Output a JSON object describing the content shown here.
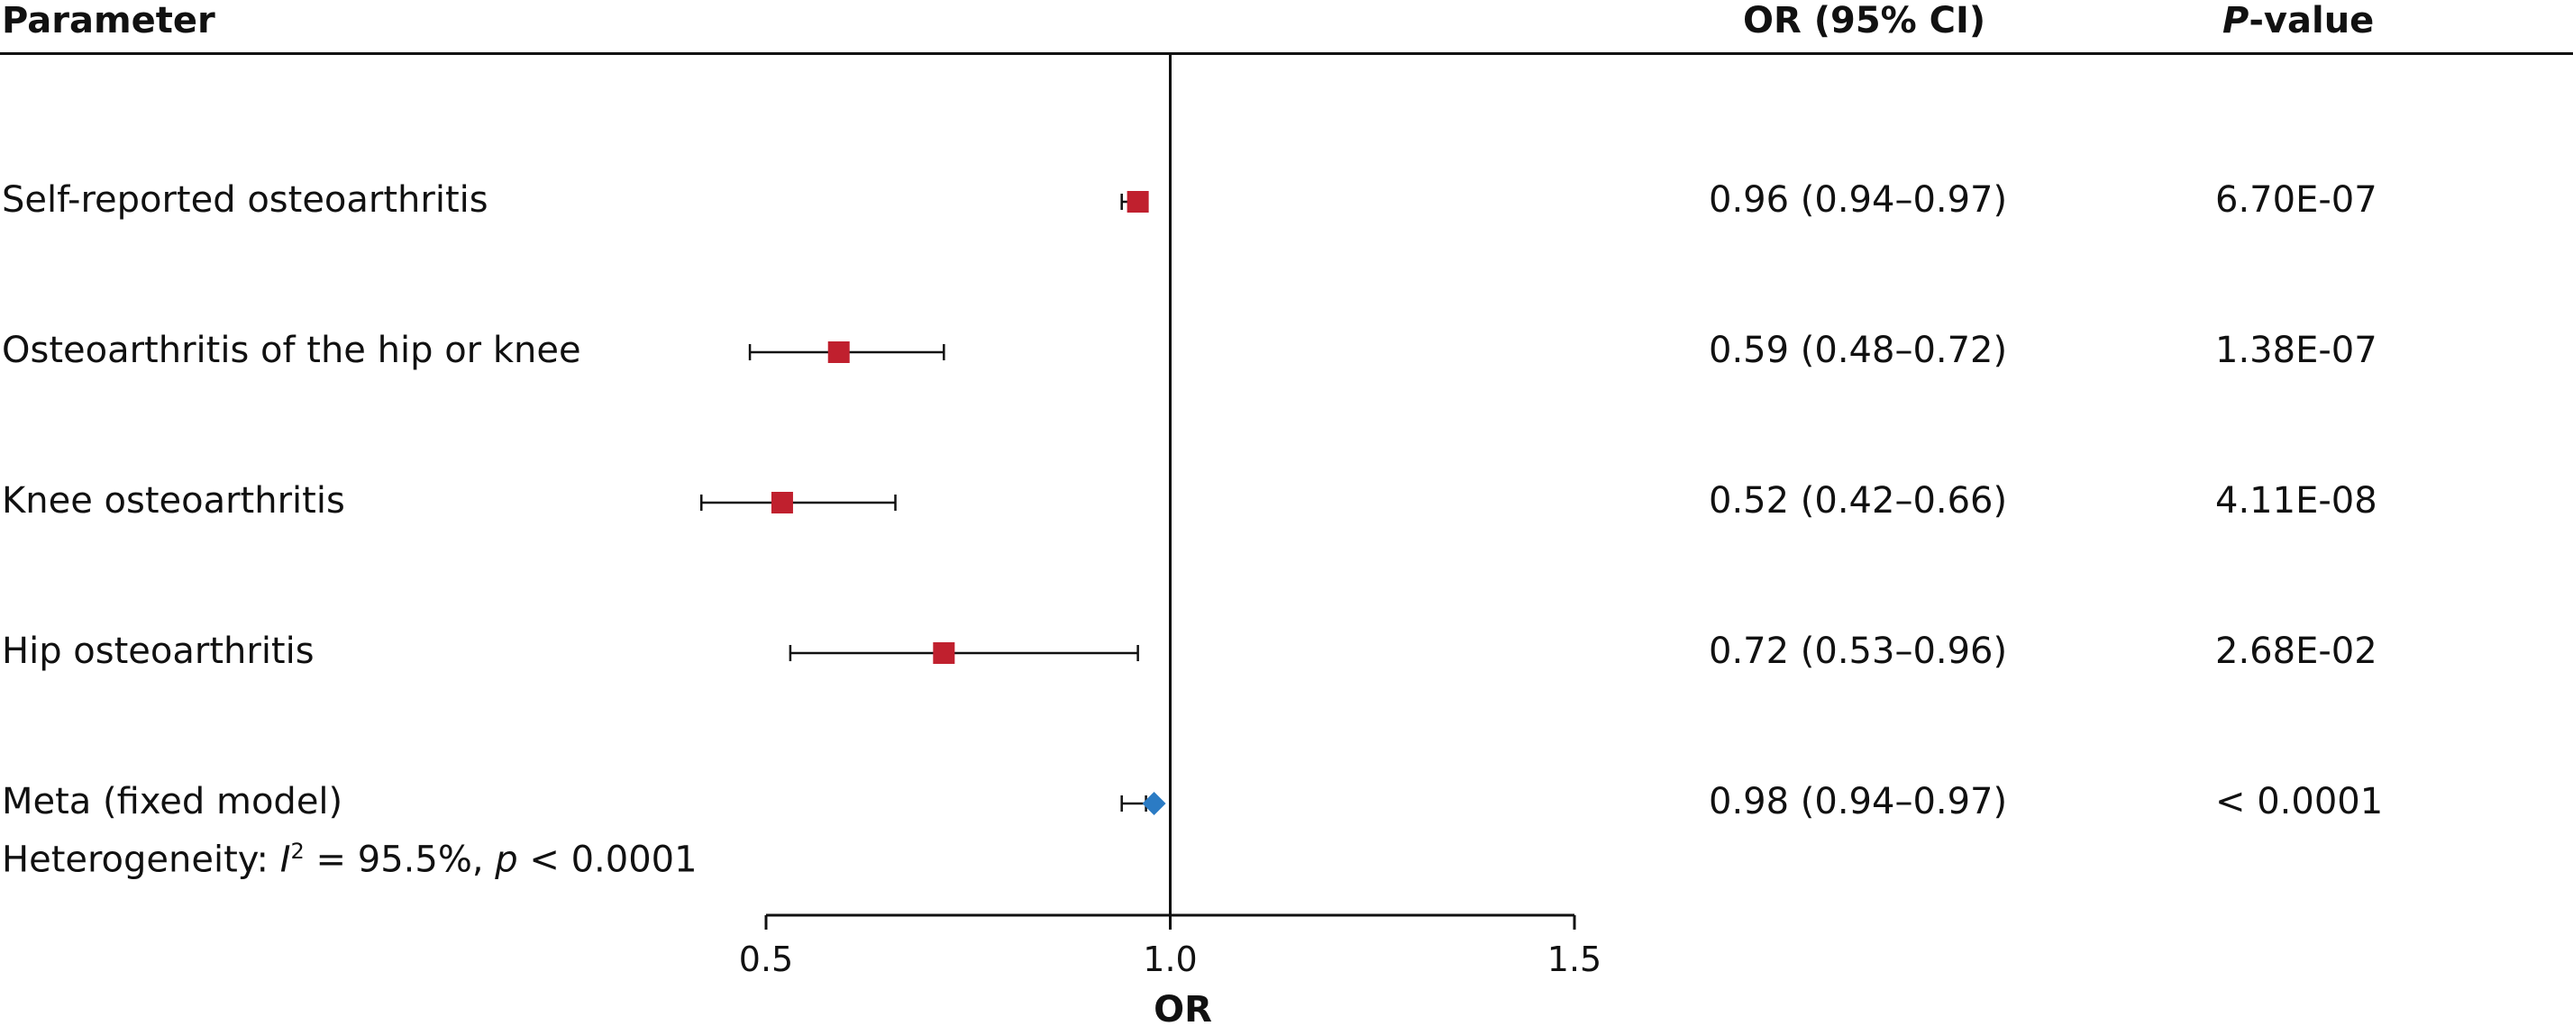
{
  "header": {
    "parameter": "Parameter",
    "or_ci": "OR (95% CI)",
    "p_italic": "P",
    "p_rest": "-value"
  },
  "rows": [
    {
      "label": "Self-reported osteoarthritis",
      "or_text": "0.96 (0.94–0.97)",
      "p_text": "6.70E-07"
    },
    {
      "label": "Osteoarthritis of the hip or knee",
      "or_text": "0.59 (0.48–0.72)",
      "p_text": "1.38E-07"
    },
    {
      "label": "Knee osteoarthritis",
      "or_text": "0.52 (0.42–0.66)",
      "p_text": "4.11E-08"
    },
    {
      "label": "Hip osteoarthritis",
      "or_text": "0.72 (0.53–0.96)",
      "p_text": "2.68E-02"
    },
    {
      "label": "Meta (fixed model)",
      "or_text": "0.98 (0.94–0.97)",
      "p_text": "< 0.0001"
    }
  ],
  "heterogeneity": {
    "prefix": "Heterogeneity: ",
    "i": "I",
    "sup": "2",
    "mid": " = 95.5%, ",
    "p": "p",
    "suffix": " < 0.0001"
  },
  "colors": {
    "study_marker": "#c0202e",
    "meta_marker": "#2b7bc4",
    "ink": "#111111"
  },
  "chart_data": {
    "type": "forest",
    "xlabel": "OR",
    "xlim": [
      0.5,
      1.5
    ],
    "xticks": [
      0.5,
      1.0,
      1.5
    ],
    "xtick_labels": [
      "0.5",
      "1.0",
      "1.5"
    ],
    "reference_line": 1.0,
    "series": [
      {
        "label": "Self-reported osteoarthritis",
        "or": 0.96,
        "lower": 0.94,
        "upper": 0.97,
        "marker": "square"
      },
      {
        "label": "Osteoarthritis of the hip or knee",
        "or": 0.59,
        "lower": 0.48,
        "upper": 0.72,
        "marker": "square"
      },
      {
        "label": "Knee osteoarthritis",
        "or": 0.52,
        "lower": 0.42,
        "upper": 0.66,
        "marker": "square"
      },
      {
        "label": "Hip osteoarthritis",
        "or": 0.72,
        "lower": 0.53,
        "upper": 0.96,
        "marker": "square"
      },
      {
        "label": "Meta (fixed model)",
        "or": 0.98,
        "lower": 0.94,
        "upper": 0.97,
        "marker": "diamond"
      }
    ]
  }
}
